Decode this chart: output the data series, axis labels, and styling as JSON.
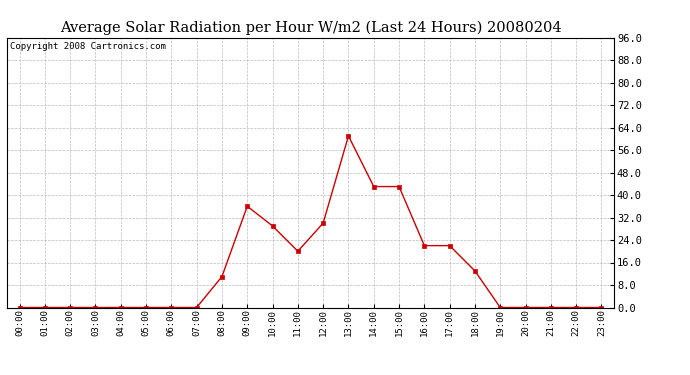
{
  "title": "Average Solar Radiation per Hour W/m2 (Last 24 Hours) 20080204",
  "copyright": "Copyright 2008 Cartronics.com",
  "hours": [
    "00:00",
    "01:00",
    "02:00",
    "03:00",
    "04:00",
    "05:00",
    "06:00",
    "07:00",
    "08:00",
    "09:00",
    "10:00",
    "11:00",
    "12:00",
    "13:00",
    "14:00",
    "15:00",
    "16:00",
    "17:00",
    "18:00",
    "19:00",
    "20:00",
    "21:00",
    "22:00",
    "23:00"
  ],
  "values": [
    0.0,
    0.0,
    0.0,
    0.0,
    0.0,
    0.0,
    0.0,
    0.0,
    11.0,
    36.0,
    29.0,
    20.0,
    30.0,
    61.0,
    43.0,
    43.0,
    22.0,
    22.0,
    13.0,
    0.0,
    0.0,
    0.0,
    0.0,
    0.0
  ],
  "ylim": [
    0.0,
    96.0
  ],
  "yticks": [
    0.0,
    8.0,
    16.0,
    24.0,
    32.0,
    40.0,
    48.0,
    56.0,
    64.0,
    72.0,
    80.0,
    88.0,
    96.0
  ],
  "line_color": "#cc0000",
  "marker": "s",
  "marker_size": 3,
  "bg_color": "#ffffff",
  "grid_color": "#bbbbbb",
  "title_fontsize": 10.5,
  "copyright_fontsize": 6.5,
  "tick_fontsize": 7.5,
  "xtick_fontsize": 6.5
}
